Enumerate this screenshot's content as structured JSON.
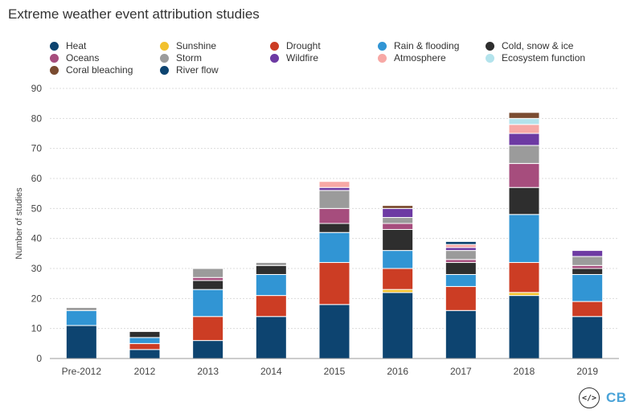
{
  "chart_data": {
    "type": "bar",
    "stacked": true,
    "title": "Extreme weather event attribution studies",
    "ylabel": "Number of studies",
    "xlabel": "",
    "ylim": [
      0,
      90
    ],
    "yticks": [
      0,
      10,
      20,
      30,
      40,
      50,
      60,
      70,
      80,
      90
    ],
    "categories": [
      "Pre-2012",
      "2012",
      "2013",
      "2014",
      "2015",
      "2016",
      "2017",
      "2018",
      "2019"
    ],
    "series": [
      {
        "name": "Heat",
        "color": "#0d4470",
        "values": [
          11,
          3,
          6,
          14,
          18,
          22,
          16,
          21,
          14
        ]
      },
      {
        "name": "Sunshine",
        "color": "#f2c12e",
        "values": [
          0,
          0,
          0,
          0,
          0,
          1,
          0,
          1,
          0
        ]
      },
      {
        "name": "Drought",
        "color": "#cc3d24",
        "values": [
          0,
          2,
          8,
          7,
          14,
          7,
          8,
          10,
          5
        ]
      },
      {
        "name": "Rain & flooding",
        "color": "#3195d4",
        "values": [
          5,
          2,
          9,
          7,
          10,
          6,
          4,
          16,
          9
        ]
      },
      {
        "name": "Cold, snow & ice",
        "color": "#2e2e2e",
        "values": [
          0,
          2,
          3,
          3,
          3,
          7,
          4,
          9,
          2
        ]
      },
      {
        "name": "Oceans",
        "color": "#a64d7d",
        "values": [
          0,
          0,
          1,
          0,
          5,
          2,
          1,
          8,
          1
        ]
      },
      {
        "name": "Storm",
        "color": "#9b9b9b",
        "values": [
          1,
          0,
          3,
          1,
          6,
          2,
          3,
          6,
          3
        ]
      },
      {
        "name": "Wildfire",
        "color": "#6d3aa3",
        "values": [
          0,
          0,
          0,
          0,
          1,
          3,
          1,
          4,
          2
        ]
      },
      {
        "name": "Atmosphere",
        "color": "#f7a8a5",
        "values": [
          0,
          0,
          0,
          0,
          2,
          0,
          1,
          3,
          0
        ]
      },
      {
        "name": "Ecosystem function",
        "color": "#b3e3ec",
        "values": [
          0,
          0,
          0,
          0,
          0,
          0,
          0,
          2,
          0
        ]
      },
      {
        "name": "Coral bleaching",
        "color": "#7a4b30",
        "values": [
          0,
          0,
          0,
          0,
          0,
          1,
          0,
          2,
          0
        ]
      },
      {
        "name": "River flow",
        "color": "#0d4470",
        "values": [
          0,
          0,
          0,
          0,
          0,
          0,
          1,
          0,
          0
        ]
      }
    ],
    "legend_position": "top"
  },
  "legend": [
    {
      "label": "Heat",
      "color": "#0d4470"
    },
    {
      "label": "Sunshine",
      "color": "#f2c12e"
    },
    {
      "label": "Drought",
      "color": "#cc3d24"
    },
    {
      "label": "Rain & flooding",
      "color": "#3195d4"
    },
    {
      "label": "Cold, snow & ice",
      "color": "#2e2e2e"
    },
    {
      "label": "Oceans",
      "color": "#a64d7d"
    },
    {
      "label": "Storm",
      "color": "#9b9b9b"
    },
    {
      "label": "Wildfire",
      "color": "#6d3aa3"
    },
    {
      "label": "Atmosphere",
      "color": "#f7a8a5"
    },
    {
      "label": "Ecosystem function",
      "color": "#b3e3ec"
    },
    {
      "label": "Coral bleaching",
      "color": "#7a4b30"
    },
    {
      "label": "River flow",
      "color": "#0d4470"
    }
  ],
  "branding": {
    "code_icon": "</>",
    "logo_text": "CB"
  }
}
